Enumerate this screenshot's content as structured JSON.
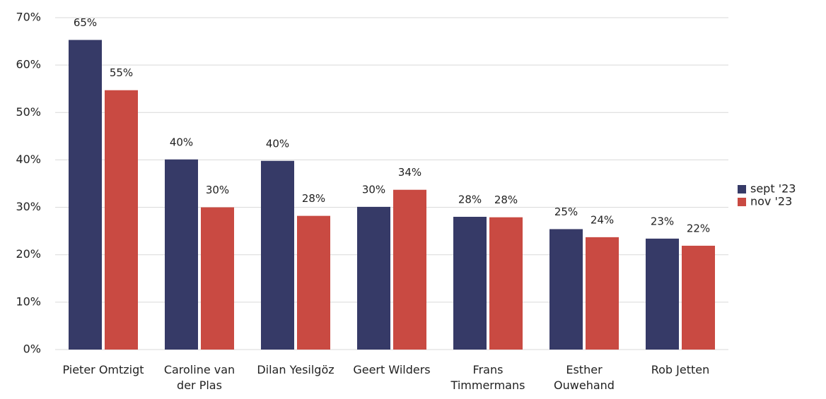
{
  "chart_data": {
    "type": "bar",
    "categories": [
      "Pieter Omtzigt",
      "Caroline van der Plas",
      "Dilan Yesilgöz",
      "Geert Wilders",
      "Frans Timmermans",
      "Esther Ouwehand",
      "Rob Jetten"
    ],
    "series": [
      {
        "name": "sept '23",
        "color": "#363a67",
        "values": [
          65.3,
          40.1,
          39.8,
          30.1,
          28.0,
          25.4,
          23.4
        ],
        "value_labels": [
          "65%",
          "40%",
          "40%",
          "30%",
          "28%",
          "25%",
          "23%"
        ]
      },
      {
        "name": "nov '23",
        "color": "#c94a42",
        "values": [
          54.7,
          30.0,
          28.2,
          33.7,
          27.9,
          23.7,
          21.9
        ],
        "value_labels": [
          "55%",
          "30%",
          "28%",
          "34%",
          "28%",
          "24%",
          "22%"
        ]
      }
    ],
    "ylim": [
      0,
      70
    ],
    "yticks": [
      {
        "value": 0,
        "label": "0%"
      },
      {
        "value": 10,
        "label": "10%"
      },
      {
        "value": 20,
        "label": "20%"
      },
      {
        "value": 30,
        "label": "30%"
      },
      {
        "value": 40,
        "label": "40%"
      },
      {
        "value": 50,
        "label": "50%"
      },
      {
        "value": 60,
        "label": "60%"
      },
      {
        "value": 70,
        "label": "70%"
      }
    ],
    "grid": true,
    "legend": "right"
  }
}
